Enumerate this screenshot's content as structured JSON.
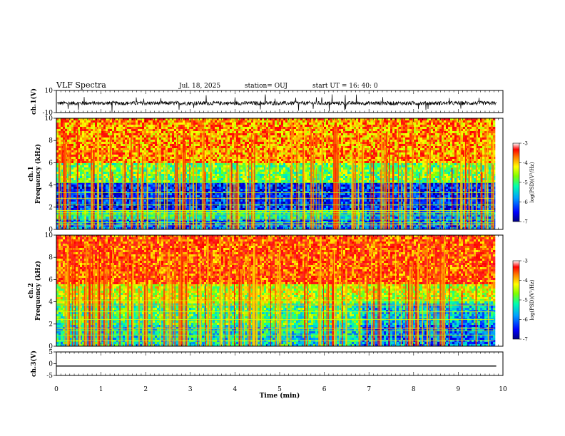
{
  "header": {
    "title": "VLF Spectra",
    "date": "Jul. 18, 2025",
    "station": "station= OUJ",
    "start": "start UT =  16: 40: 0"
  },
  "chart_data": [
    {
      "type": "line",
      "panel": "ch1-waveform",
      "ylabel": "ch.1(V)",
      "ylim": [
        -10,
        10
      ],
      "yticks": [
        "10",
        "-10"
      ],
      "baseline": -1.5,
      "xlim": [
        0,
        10
      ]
    },
    {
      "type": "heatmap",
      "panel": "ch1-spectrogram",
      "ylabel": "ch.1\nFrequency (kHz)",
      "ylim": [
        0,
        10
      ],
      "yticks": [
        "0",
        "2",
        "4",
        "6",
        "8",
        "10"
      ],
      "xlim": [
        0,
        10
      ],
      "data_end_min": 9.8,
      "color_label": "log(PSD)(V²/Hz)",
      "color_range": [
        -7,
        -3
      ],
      "color_ticks": [
        "-3",
        "-4",
        "-5",
        "-6",
        "-7"
      ],
      "bands": [
        {
          "from_khz": 0,
          "to_khz": 1.0,
          "level": -6.0
        },
        {
          "from_khz": 1.0,
          "to_khz": 1.8,
          "level": -5.2
        },
        {
          "from_khz": 1.8,
          "to_khz": 4.2,
          "level": -6.3
        },
        {
          "from_khz": 4.2,
          "to_khz": 6.0,
          "level": -4.8
        },
        {
          "from_khz": 6.0,
          "to_khz": 10.0,
          "level": -3.8
        }
      ]
    },
    {
      "type": "heatmap",
      "panel": "ch2-spectrogram",
      "ylabel": "ch.2\nFrequency (kHz)",
      "ylim": [
        0,
        10
      ],
      "yticks": [
        "0",
        "2",
        "4",
        "6",
        "8",
        "10"
      ],
      "xlim": [
        0,
        10
      ],
      "data_end_min": 9.8,
      "color_label": "log(PSD)(V²/Hz)",
      "color_range": [
        -7,
        -3
      ],
      "color_ticks": [
        "-3",
        "-4",
        "-5",
        "-6",
        "-7"
      ],
      "bands": [
        {
          "from_khz": 0,
          "to_khz": 2.0,
          "level": -5.4
        },
        {
          "from_khz": 2.0,
          "to_khz": 3.8,
          "level": -5.0
        },
        {
          "from_khz": 3.8,
          "to_khz": 5.5,
          "level": -4.4
        },
        {
          "from_khz": 5.5,
          "to_khz": 10.0,
          "level": -3.5
        }
      ]
    },
    {
      "type": "line",
      "panel": "ch3-waveform",
      "ylabel": "ch.3(V)",
      "ylim": [
        -5,
        5
      ],
      "yticks": [
        "5",
        "0",
        "-5"
      ],
      "values_constant": -1.0,
      "xlim": [
        0,
        10
      ],
      "xlabel": "Time (min)",
      "xticks": [
        "0",
        "1",
        "2",
        "3",
        "4",
        "5",
        "6",
        "7",
        "8",
        "9",
        "10"
      ]
    }
  ]
}
